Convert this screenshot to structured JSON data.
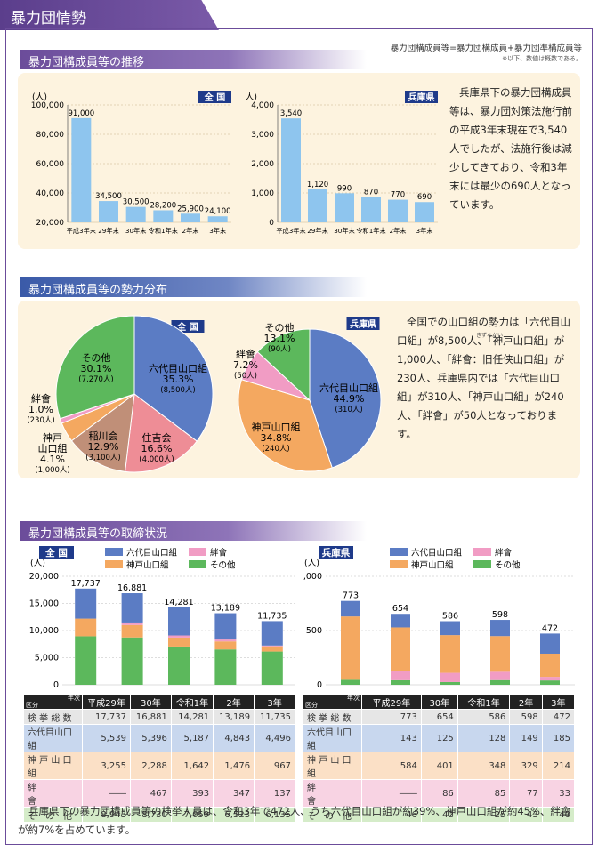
{
  "page": {
    "title": "暴力団情勢"
  },
  "sections": {
    "s1": {
      "title": "暴力団構成員等の推移",
      "formula": "暴力団構成員等=暴力団構成員+暴力団準構成員等",
      "note": "※以下、数値は概数である。"
    },
    "s2": {
      "title": "暴力団構成員等の勢力分布"
    },
    "s3": {
      "title": "暴力団構成員等の取締状況"
    }
  },
  "texts": {
    "s1_body": "兵庫県下の暴力団構成員等は、暴力団対策法施行前の平成3年末現在で3,540人でしたが、法施行後は減少してきており、令和3年末には最少の690人となっています。",
    "s2_body": "全国での山口組の勢力は「六代目山口組」が8,500人、「神戸山口組」が1,000人、「絆會：旧任侠山口組」が230人、兵庫県内では「六代目山口組」が310人、「神戸山口組」が240人、「絆會」が50人となっております。",
    "s2_ruby": "きずなかい",
    "footer": "兵庫県下の暴力団構成員等の検挙人員は、令和3年で472人、うち六代目山口組が約39%、神戸山口組が約45%、絆會が約7%を占めています。"
  },
  "chart_data": [
    {
      "id": "members_national",
      "type": "bar",
      "title": "全 国",
      "ylabel": "(人)",
      "categories": [
        "平成3年末",
        "29年末",
        "30年末",
        "令和1年末",
        "2年末",
        "3年末"
      ],
      "values": [
        91000,
        34500,
        30500,
        28200,
        25900,
        24100
      ],
      "value_labels": [
        "91,000",
        "34,500",
        "30,500",
        "28,200",
        "25,900",
        "24,100"
      ],
      "ylim": [
        20000,
        100000
      ],
      "yticks": [
        20000,
        40000,
        60000,
        80000,
        100000
      ],
      "ytick_labels": [
        "20,000",
        "40,000",
        "60,000",
        "80,000",
        "100,000"
      ]
    },
    {
      "id": "members_hyogo",
      "type": "bar",
      "title": "兵庫県",
      "ylabel": "(人)",
      "categories": [
        "平成3年末",
        "29年末",
        "30年末",
        "令和1年末",
        "2年末",
        "3年末"
      ],
      "values": [
        3540,
        1120,
        990,
        870,
        770,
        690
      ],
      "value_labels": [
        "3,540",
        "1,120",
        "990",
        "870",
        "770",
        "690"
      ],
      "ylim": [
        0,
        4000
      ],
      "yticks": [
        0,
        1000,
        2000,
        3000,
        4000
      ],
      "ytick_labels": [
        "0",
        "1,000",
        "2,000",
        "3,000",
        "4,000"
      ]
    },
    {
      "id": "share_national",
      "type": "pie",
      "title": "全 国",
      "slices": [
        {
          "name": "六代目山口組",
          "pct": 35.3,
          "pct_label": "35.3%",
          "count_label": "(8,500人)",
          "color": "#5b7cc4"
        },
        {
          "name": "住吉会",
          "pct": 16.6,
          "pct_label": "16.6%",
          "count_label": "(4,000人)",
          "color": "#ee8d96"
        },
        {
          "name": "稲川会",
          "pct": 12.9,
          "pct_label": "12.9%",
          "count_label": "(3,100人)",
          "color": "#c08f78"
        },
        {
          "name": "神戸山口組",
          "pct": 4.1,
          "pct_label": "4.1%",
          "count_label": "(1,000人)",
          "color": "#f4a860"
        },
        {
          "name": "絆會",
          "pct": 1.0,
          "pct_label": "1.0%",
          "count_label": "(230人)",
          "color": "#f19cc4"
        },
        {
          "name": "その他",
          "pct": 30.1,
          "pct_label": "30.1%",
          "count_label": "(7,270人)",
          "color": "#5cb85c"
        }
      ]
    },
    {
      "id": "share_hyogo",
      "type": "pie",
      "title": "兵庫県",
      "slices": [
        {
          "name": "六代目山口組",
          "pct": 44.9,
          "pct_label": "44.9%",
          "count_label": "(310人)",
          "color": "#5b7cc4"
        },
        {
          "name": "神戸山口組",
          "pct": 34.8,
          "pct_label": "34.8%",
          "count_label": "(240人)",
          "color": "#f4a860"
        },
        {
          "name": "絆會",
          "pct": 7.2,
          "pct_label": "7.2%",
          "count_label": "(50人)",
          "color": "#f19cc4"
        },
        {
          "name": "その他",
          "pct": 13.1,
          "pct_label": "13.1%",
          "count_label": "(90人)",
          "color": "#5cb85c"
        }
      ]
    },
    {
      "id": "arrests_national",
      "type": "bar",
      "stacked": true,
      "title": "全 国",
      "ylabel": "(人)",
      "categories": [
        "平成29年",
        "30年",
        "令和1年",
        "2年",
        "3年"
      ],
      "totals": [
        17737,
        16881,
        14281,
        13189,
        11735
      ],
      "total_labels": [
        "17,737",
        "16,881",
        "14,281",
        "13,189",
        "11,735"
      ],
      "series": [
        {
          "name": "その他",
          "color": "#5cb85c",
          "values": [
            8943,
            8730,
            7059,
            6523,
            6135
          ]
        },
        {
          "name": "神戸山口組",
          "color": "#f4a860",
          "values": [
            3255,
            2288,
            1642,
            1476,
            967
          ]
        },
        {
          "name": "絆會",
          "color": "#f19cc4",
          "values": [
            0,
            467,
            393,
            347,
            137
          ]
        },
        {
          "name": "六代目山口組",
          "color": "#5b7cc4",
          "values": [
            5539,
            5396,
            5187,
            4843,
            4496
          ]
        }
      ],
      "ylim": [
        0,
        20000
      ],
      "yticks": [
        0,
        5000,
        10000,
        15000,
        20000
      ],
      "ytick_labels": [
        "0",
        "5,000",
        "10,000",
        "15,000",
        "20,000"
      ],
      "legend": [
        "六代目山口組",
        "絆會",
        "神戸山口組",
        "その他"
      ],
      "table": {
        "corner_top": "年次",
        "corner_bottom": "区分",
        "headers": [
          "平成29年",
          "30年",
          "令和1年",
          "2年",
          "3年"
        ],
        "rows": [
          {
            "label": "検 挙 総 数",
            "cells": [
              "17,737",
              "16,881",
              "14,281",
              "13,189",
              "11,735"
            ]
          },
          {
            "label": "六代目山口組",
            "cells": [
              "5,539",
              "5,396",
              "5,187",
              "4,843",
              "4,496"
            ]
          },
          {
            "label": "神 戸 山 口 組",
            "cells": [
              "3,255",
              "2,288",
              "1,642",
              "1,476",
              "967"
            ]
          },
          {
            "label": "絆　　　　會",
            "cells": [
              "――",
              "467",
              "393",
              "347",
              "137"
            ]
          },
          {
            "label": "そ　の　他",
            "cells": [
              "8,943",
              "8,730",
              "7,059",
              "6,523",
              "6,135"
            ]
          }
        ]
      }
    },
    {
      "id": "arrests_hyogo",
      "type": "bar",
      "stacked": true,
      "title": "兵庫県",
      "ylabel": "(人)",
      "categories": [
        "平成29年",
        "30年",
        "令和1年",
        "2年",
        "3年"
      ],
      "totals": [
        773,
        654,
        586,
        598,
        472
      ],
      "total_labels": [
        "773",
        "654",
        "586",
        "598",
        "472"
      ],
      "series": [
        {
          "name": "その他",
          "color": "#5cb85c",
          "values": [
            46,
            42,
            25,
            43,
            40
          ]
        },
        {
          "name": "絆會",
          "color": "#f19cc4",
          "values": [
            0,
            86,
            85,
            77,
            33
          ]
        },
        {
          "name": "神戸山口組",
          "color": "#f4a860",
          "values": [
            584,
            401,
            348,
            329,
            214
          ]
        },
        {
          "name": "六代目山口組",
          "color": "#5b7cc4",
          "values": [
            143,
            125,
            128,
            149,
            185
          ]
        }
      ],
      "ylim": [
        0,
        1000
      ],
      "yticks": [
        0,
        500,
        1000
      ],
      "ytick_labels": [
        "0",
        "500",
        "1,000"
      ],
      "legend": [
        "六代目山口組",
        "絆會",
        "神戸山口組",
        "その他"
      ],
      "table": {
        "corner_top": "年次",
        "corner_bottom": "区分",
        "headers": [
          "平成29年",
          "30年",
          "令和1年",
          "2年",
          "3年"
        ],
        "rows": [
          {
            "label": "検 挙 総 数",
            "cells": [
              "773",
              "654",
              "586",
              "598",
              "472"
            ]
          },
          {
            "label": "六代目山口組",
            "cells": [
              "143",
              "125",
              "128",
              "149",
              "185"
            ]
          },
          {
            "label": "神 戸 山 口 組",
            "cells": [
              "584",
              "401",
              "348",
              "329",
              "214"
            ]
          },
          {
            "label": "絆　　　　會",
            "cells": [
              "――",
              "86",
              "85",
              "77",
              "33"
            ]
          },
          {
            "label": "そ　の　他",
            "cells": [
              "46",
              "42",
              "25",
              "43",
              "40"
            ]
          }
        ]
      }
    }
  ]
}
